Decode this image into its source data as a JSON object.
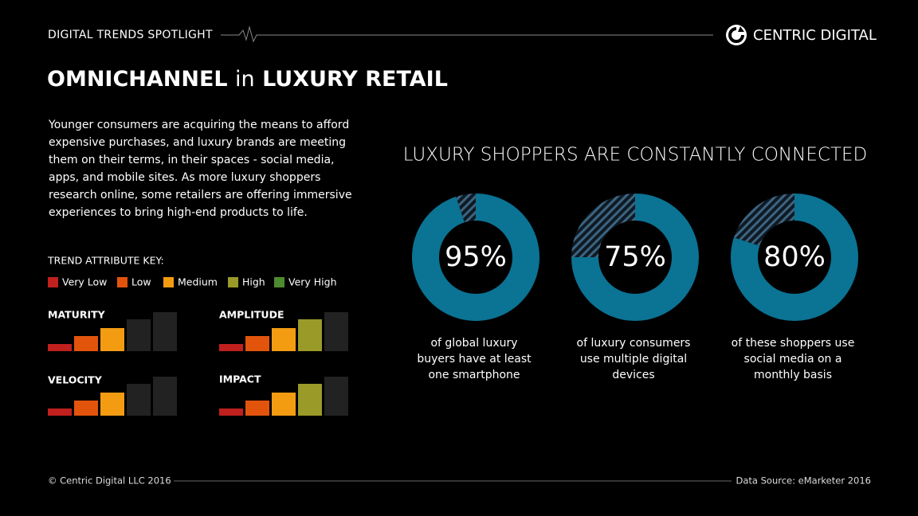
{
  "header": {
    "label": "DIGITAL TRENDS SPOTLIGHT",
    "brand": "CENTRIC DIGITAL"
  },
  "title": [
    "OMNICHANNEL",
    "in",
    "LUXURY RETAIL"
  ],
  "intro": [
    "Younger consumers are acquiring the means to afford",
    "expensive purchases, and luxury brands are meeting",
    "them on their terms, in their spaces - social media,",
    "apps, and mobile sites. As more luxury shoppers",
    "research online, some retailers are offering immersive",
    "experiences to bring high-end products to life."
  ],
  "key": {
    "title": "TREND ATTRIBUTE KEY:",
    "levels": [
      {
        "label": "Very Low",
        "color": "#c0201e"
      },
      {
        "label": "Low",
        "color": "#e2540c"
      },
      {
        "label": "Medium",
        "color": "#f39c12"
      },
      {
        "label": "High",
        "color": "#9a9a28"
      },
      {
        "label": "Very High",
        "color": "#4e8a2e"
      }
    ]
  },
  "attributes": [
    {
      "name": "MATURITY",
      "level": 3
    },
    {
      "name": "AMPLITUDE",
      "level": 4
    },
    {
      "name": "VELOCITY",
      "level": 3
    },
    {
      "name": "IMPACT",
      "level": 4
    }
  ],
  "charts_title": "LUXURY SHOPPERS ARE CONSTANTLY CONNECTED",
  "chart_data": [
    {
      "type": "donut",
      "values": [
        95
      ],
      "value_labels": [
        "95%"
      ],
      "ylim": [
        0,
        100
      ],
      "color": "#0b7394",
      "caption": [
        "of global luxury",
        "buyers have at least",
        "one smartphone"
      ]
    },
    {
      "type": "donut",
      "values": [
        75
      ],
      "value_labels": [
        "75%"
      ],
      "ylim": [
        0,
        100
      ],
      "color": "#0b7394",
      "caption": [
        "of luxury consumers",
        "use multiple digital",
        "devices"
      ]
    },
    {
      "type": "donut",
      "values": [
        80
      ],
      "value_labels": [
        "80%"
      ],
      "ylim": [
        0,
        100
      ],
      "color": "#0b7394",
      "caption": [
        "of these shoppers use",
        "social media on a",
        "monthly basis"
      ]
    }
  ],
  "footer": {
    "copyright": "© Centric Digital LLC 2016",
    "source": "Data Source: eMarketer 2016"
  }
}
